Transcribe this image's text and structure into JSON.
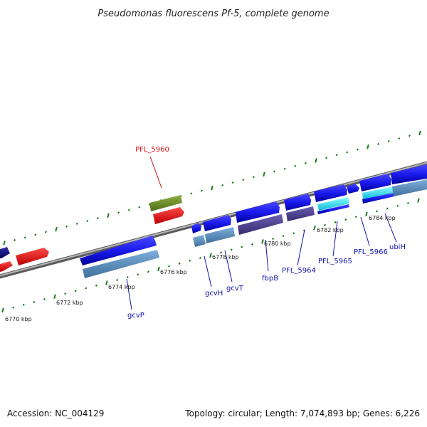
{
  "title": "Pseudomonas fluorescens Pf-5, complete genome",
  "footer": {
    "accession": "Accession: NC_004129",
    "summary": "Topology: circular; Length: 7,074,893 bp; Genes: 6,226"
  },
  "colors": {
    "backbone": "#8a8a8a",
    "tick": "#1f7a1f",
    "forward_gene": "#1a1aee",
    "forward_gene_dark": "#0000aa",
    "reverse_gene": "#5a8fc0",
    "purple_gene": "#4b3f8f",
    "red_gene": "#ee1111",
    "green_gene": "#6b8e23",
    "cyan_gene": "#22ddee",
    "label_blue": "#1010aa",
    "label_red": "#dd1111"
  },
  "scale": {
    "start_kbp": 6769,
    "end_kbp": 6786,
    "ticks": [
      {
        "label": "6770 kbp"
      },
      {
        "label": "6772 kbp"
      },
      {
        "label": "6774 kbp"
      },
      {
        "label": "6776 kbp"
      },
      {
        "label": "6778 kbp"
      },
      {
        "label": "6780 kbp"
      },
      {
        "label": "6782 kbp"
      },
      {
        "label": "6784 kbp"
      }
    ]
  },
  "gene_labels": [
    {
      "id": "PFL_5960",
      "text": "PFL_5960",
      "color": "red"
    },
    {
      "id": "gcvP",
      "text": "gcvP",
      "color": "blue"
    },
    {
      "id": "gcvH",
      "text": "gcvH",
      "color": "blue"
    },
    {
      "id": "gcvT",
      "text": "gcvT",
      "color": "blue"
    },
    {
      "id": "fbpB",
      "text": "fbpB",
      "color": "blue"
    },
    {
      "id": "PFL_5964",
      "text": "PFL_5964",
      "color": "blue"
    },
    {
      "id": "PFL_5965",
      "text": "PFL_5965",
      "color": "blue"
    },
    {
      "id": "PFL_5966",
      "text": "PFL_5966",
      "color": "blue"
    },
    {
      "id": "ubiH",
      "text": "ubiH",
      "color": "blue"
    }
  ]
}
